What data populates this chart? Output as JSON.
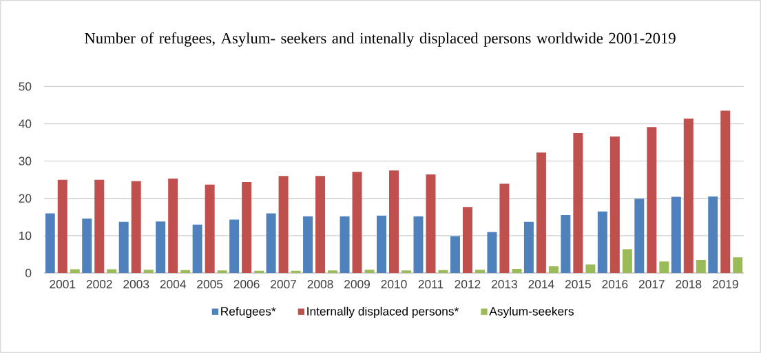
{
  "chart_data": {
    "type": "bar",
    "title": "Number of refugees, Asylum- seekers and intenally displaced persons worldwide 2001-2019",
    "categories": [
      "2001",
      "2002",
      "2003",
      "2004",
      "2005",
      "2006",
      "2007",
      "2008",
      "2009",
      "2010",
      "2011",
      "2012",
      "2013",
      "2014",
      "2015",
      "2016",
      "2017",
      "2018",
      "2019"
    ],
    "series": [
      {
        "name": "Refugees*",
        "color": "#4f81bd",
        "values": [
          16.0,
          14.6,
          13.7,
          13.8,
          13.0,
          14.3,
          16.0,
          15.2,
          15.2,
          15.4,
          15.2,
          9.9,
          11.0,
          13.7,
          15.5,
          16.5,
          19.9,
          20.4,
          20.5
        ]
      },
      {
        "name": "Internally displaced persons*",
        "color": "#c0504d",
        "values": [
          25.0,
          25.0,
          24.6,
          25.3,
          23.7,
          24.4,
          26.0,
          26.0,
          27.1,
          27.5,
          26.4,
          17.7,
          23.9,
          32.3,
          37.5,
          36.6,
          39.1,
          41.4,
          43.5
        ]
      },
      {
        "name": "Asylum-seekers",
        "color": "#9bbb59",
        "values": [
          1.0,
          1.0,
          0.9,
          0.8,
          0.7,
          0.6,
          0.6,
          0.7,
          0.9,
          0.7,
          0.8,
          0.9,
          1.1,
          1.8,
          2.3,
          6.4,
          3.1,
          3.5,
          4.2
        ]
      }
    ],
    "ylim": [
      0,
      50
    ],
    "yticks": [
      0,
      10,
      20,
      30,
      40,
      50
    ],
    "grid": "y",
    "legend": "bottom"
  }
}
